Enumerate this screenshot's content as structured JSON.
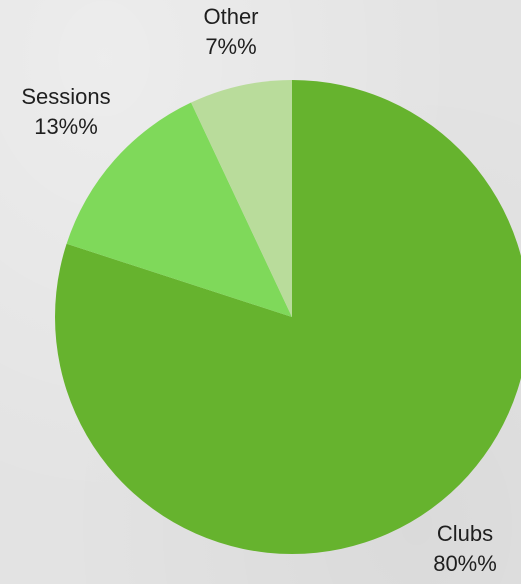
{
  "chart_data": {
    "type": "pie",
    "title": "",
    "slices": [
      {
        "label": "Clubs",
        "value": 80,
        "display": "80%%",
        "color": "#66b32e"
      },
      {
        "label": "Sessions",
        "value": 13,
        "display": "13%%",
        "color": "#7fd95a"
      },
      {
        "label": "Other",
        "value": 7,
        "display": "7%%",
        "color": "#b9dc9b"
      }
    ],
    "start_angle_deg": 0,
    "direction": "clockwise",
    "legend": "none"
  }
}
